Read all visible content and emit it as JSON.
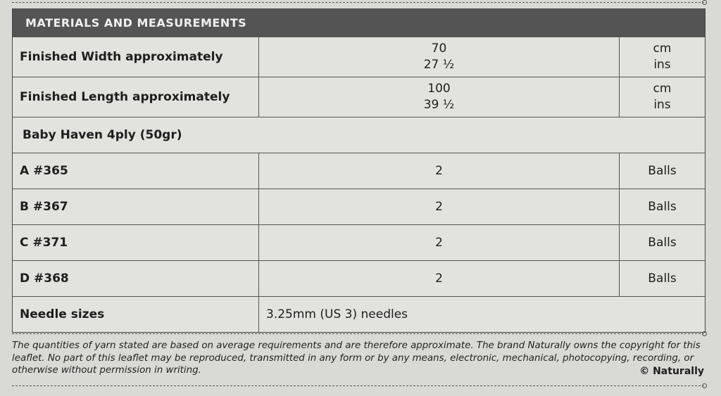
{
  "title": "MATERIALS AND MEASUREMENTS",
  "rows": [
    {
      "label": "Finished Width approximately",
      "values": [
        "70",
        "27 ½"
      ],
      "units": [
        "cm",
        "ins"
      ]
    },
    {
      "label": "Finished Length approximately",
      "values": [
        "100",
        "39 ½"
      ],
      "units": [
        "cm",
        "ins"
      ]
    }
  ],
  "yarn_heading": "Baby Haven 4ply (50gr)",
  "yarns": [
    {
      "label": "A  #365",
      "qty": "2",
      "unit": "Balls"
    },
    {
      "label": "B  #367",
      "qty": "2",
      "unit": "Balls"
    },
    {
      "label": "C  #371",
      "qty": "2",
      "unit": "Balls"
    },
    {
      "label": "D  #368",
      "qty": "2",
      "unit": "Balls"
    }
  ],
  "needles": {
    "label": "Needle sizes",
    "value": "3.25mm (US 3) needles"
  },
  "footer": {
    "text": "The quantities of yarn stated are based on average requirements and are therefore approximate. The brand Naturally owns the copyright for this leaflet. No part of this leaflet may be reproduced, transmitted in any form or by any means, electronic, mechanical, photocopying, recording, or otherwise without permission in writing.",
    "copyright": "© Naturally"
  }
}
